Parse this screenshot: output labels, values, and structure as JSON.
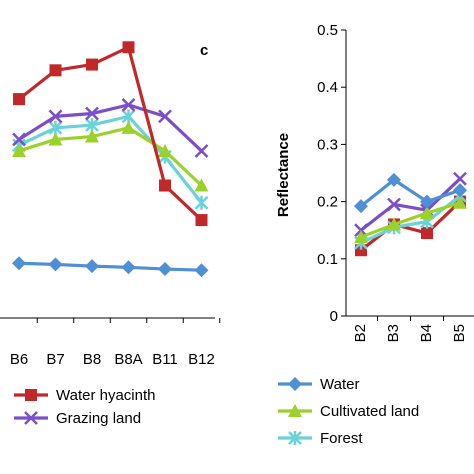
{
  "chart_data": [
    {
      "type": "line",
      "panel_label": "c",
      "categories": [
        "B6",
        "B7",
        "B8",
        "B8A",
        "B11",
        "B12"
      ],
      "ylim": [
        0,
        0.5
      ],
      "grid": false,
      "legend_position": "bottom",
      "series": [
        {
          "name": "Water hyacinth",
          "color": "#c0282a",
          "marker": "square",
          "values": [
            0.38,
            0.43,
            0.44,
            0.47,
            0.23,
            0.17
          ]
        },
        {
          "name": "Grazing land",
          "color": "#7b4fc9",
          "marker": "x",
          "values": [
            0.31,
            0.35,
            0.355,
            0.37,
            0.35,
            0.29
          ]
        },
        {
          "name": "",
          "color": "#9bd12b",
          "marker": "triangle",
          "values": [
            0.29,
            0.31,
            0.315,
            0.33,
            0.29,
            0.23
          ]
        },
        {
          "name": "",
          "color": "#6bd3d8",
          "marker": "asterisk",
          "values": [
            0.3,
            0.33,
            0.335,
            0.35,
            0.28,
            0.2
          ]
        },
        {
          "name": "",
          "color": "#4f8fd6",
          "marker": "diamond",
          "values": [
            0.095,
            0.093,
            0.09,
            0.088,
            0.085,
            0.083
          ]
        }
      ],
      "legend": [
        "Water hyacinth",
        "Grazing land"
      ]
    },
    {
      "type": "line",
      "categories": [
        "B2",
        "B3",
        "B4",
        "B5"
      ],
      "ylabel": "Reflectance",
      "ylim": [
        0,
        0.5
      ],
      "yticks": [
        "0",
        "0.1",
        "0.2",
        "0.3",
        "0.4",
        "0.5"
      ],
      "grid": false,
      "legend_position": "bottom",
      "series": [
        {
          "name": "Water",
          "color": "#4f8fd6",
          "marker": "diamond",
          "values": [
            0.192,
            0.238,
            0.2,
            0.22
          ]
        },
        {
          "name": "Cultivated land",
          "color": "#9bd12b",
          "marker": "triangle",
          "values": [
            0.138,
            0.16,
            0.18,
            0.198
          ]
        },
        {
          "name": "Forest",
          "color": "#6bd3d8",
          "marker": "asterisk",
          "values": [
            0.128,
            0.155,
            0.165,
            0.21
          ]
        },
        {
          "name": "",
          "color": "#7b4fc9",
          "marker": "x",
          "values": [
            0.15,
            0.195,
            0.185,
            0.24
          ]
        },
        {
          "name": "",
          "color": "#c0282a",
          "marker": "square",
          "values": [
            0.115,
            0.16,
            0.145,
            0.2
          ]
        }
      ],
      "legend": [
        "Water",
        "Cultivated land",
        "Forest"
      ]
    }
  ]
}
